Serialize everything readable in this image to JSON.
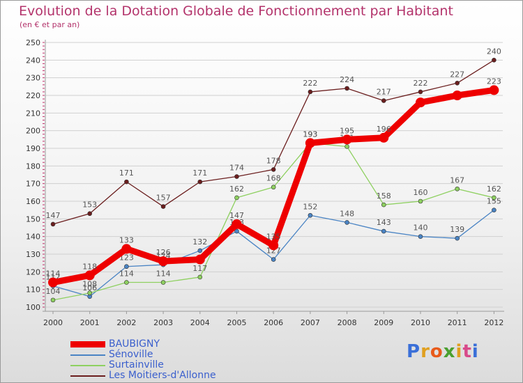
{
  "header": {
    "title": "Evolution de la Dotation Globale de Fonctionnement par Habitant",
    "subtitle": "(en € et par an)"
  },
  "brand": {
    "logo_text": "Proxiti",
    "letter_colors": [
      "#3a6fd8",
      "#e0a020",
      "#e85a1a",
      "#4aa030",
      "#e0a020",
      "#d84a8a",
      "#3a6fd8"
    ]
  },
  "colors": {
    "axis_text": "#333333",
    "grid": "#d0d0d0",
    "axis_tick": "#c0306a",
    "point_label": "#555555"
  },
  "chart_data": {
    "type": "line",
    "title": "Evolution de la Dotation Globale de Fonctionnement par Habitant",
    "subtitle": "(en € et par an)",
    "xlabel": "",
    "ylabel": "",
    "x": [
      "2000",
      "2001",
      "2002",
      "2003",
      "2004",
      "2005",
      "2006",
      "2007",
      "2008",
      "2009",
      "2010",
      "2011",
      "2012"
    ],
    "ylim": [
      100,
      250
    ],
    "yticks": [
      100,
      110,
      120,
      130,
      140,
      150,
      160,
      170,
      180,
      190,
      200,
      210,
      220,
      230,
      240,
      250
    ],
    "grid": "horizontal",
    "series": [
      {
        "name": "Les Moitiers-d'Allonne",
        "color": "#6b1e1e",
        "style": "thin",
        "values": [
          147,
          153,
          171,
          157,
          171,
          174,
          178,
          222,
          224,
          217,
          222,
          227,
          240
        ],
        "labels": [
          "147",
          "153",
          "171",
          "157",
          "171",
          "174",
          "178",
          "222",
          "224",
          "217",
          "222",
          "227",
          "240"
        ]
      },
      {
        "name": "Sénoville",
        "color": "#4a84c4",
        "style": "thin",
        "values": [
          112,
          106,
          123,
          124,
          132,
          143,
          127,
          152,
          148,
          143,
          140,
          139,
          155
        ],
        "labels": [
          "112",
          "106",
          "123",
          "124",
          "132",
          "143",
          "127",
          "152",
          "148",
          "143",
          "140",
          "139",
          "155"
        ]
      },
      {
        "name": "Surtainville",
        "color": "#8ed060",
        "style": "thin",
        "values": [
          104,
          108,
          114,
          114,
          117,
          162,
          168,
          193,
          191,
          158,
          160,
          167,
          162
        ],
        "labels": [
          "104",
          "108",
          "114",
          "114",
          "117",
          "162",
          "168",
          "193",
          "191",
          "158",
          "160",
          "167",
          "162"
        ]
      },
      {
        "name": "BAUBIGNY",
        "color": "#ee0000",
        "style": "thick",
        "values": [
          114,
          118,
          133,
          126,
          127,
          147,
          135,
          193,
          195,
          196,
          216,
          220,
          223
        ],
        "labels": [
          "114",
          "118",
          "133",
          "126",
          "",
          "147",
          "135",
          "193",
          "195",
          "196",
          "",
          "",
          "223"
        ]
      }
    ],
    "legend": [
      {
        "name": "BAUBIGNY",
        "color": "#ee0000",
        "style": "thick"
      },
      {
        "name": "Sénoville",
        "color": "#4a84c4",
        "style": "thin"
      },
      {
        "name": "Surtainville",
        "color": "#8ed060",
        "style": "thin"
      },
      {
        "name": "Les Moitiers-d'Allonne",
        "color": "#6b1e1e",
        "style": "thin"
      }
    ],
    "legend_position": "bottom-left"
  }
}
